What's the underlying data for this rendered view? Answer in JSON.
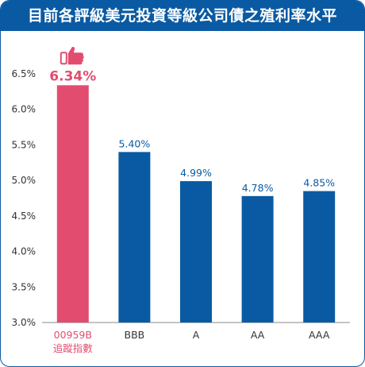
{
  "chart_data": {
    "type": "bar",
    "title": "目前各評級美元投資等級公司債之殖利率水平",
    "categories": [
      "00959B\n追蹤指數",
      "BBB",
      "A",
      "AA",
      "AAA"
    ],
    "values": [
      6.34,
      5.4,
      4.99,
      4.78,
      4.85
    ],
    "value_labels": [
      "6.34%",
      "5.40%",
      "4.99%",
      "4.78%",
      "4.85%"
    ],
    "ylim": [
      3.0,
      6.5
    ],
    "yticks": [
      "3.0%",
      "3.5%",
      "4.0%",
      "4.5%",
      "5.0%",
      "5.5%",
      "6.0%",
      "6.5%"
    ],
    "xlabel": "",
    "ylabel": "",
    "grid": false,
    "highlight_index": 0,
    "highlight_icon": "thumbs-up-icon"
  },
  "colors": {
    "highlight": "#e24d6f",
    "bar": "#0a5aa3",
    "title_bg": "#0a5aa3"
  }
}
